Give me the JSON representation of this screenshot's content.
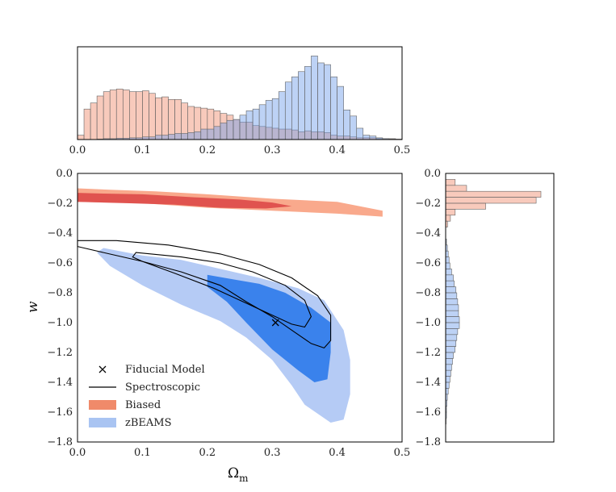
{
  "chart_data": {
    "type": "corner-plot",
    "colors": {
      "biased": "#f08a6a",
      "zbeams": "#6d9be8",
      "spectroscopic": "#000000"
    },
    "omega_hist": {
      "xlim": [
        0.0,
        0.5
      ],
      "xticks": [
        "0.0",
        "0.1",
        "0.2",
        "0.3",
        "0.4",
        "0.5"
      ],
      "bin_width": 0.01,
      "biased": [
        0.05,
        0.35,
        0.42,
        0.5,
        0.55,
        0.57,
        0.58,
        0.57,
        0.55,
        0.55,
        0.56,
        0.53,
        0.48,
        0.49,
        0.46,
        0.46,
        0.42,
        0.38,
        0.37,
        0.36,
        0.35,
        0.33,
        0.3,
        0.28,
        0.23,
        0.2,
        0.2,
        0.16,
        0.15,
        0.14,
        0.13,
        0.12,
        0.12,
        0.11,
        0.09,
        0.1,
        0.09,
        0.09,
        0.08,
        0.05,
        0.04,
        0.04,
        0.03,
        0.02,
        0.02,
        0.02,
        0.01,
        0.01,
        0.01,
        0.005
      ],
      "zbeams": [
        0.0,
        0.0,
        0.0,
        0.005,
        0.01,
        0.01,
        0.015,
        0.015,
        0.02,
        0.02,
        0.03,
        0.03,
        0.05,
        0.05,
        0.06,
        0.07,
        0.07,
        0.08,
        0.09,
        0.12,
        0.12,
        0.15,
        0.19,
        0.22,
        0.23,
        0.28,
        0.33,
        0.35,
        0.4,
        0.45,
        0.47,
        0.55,
        0.66,
        0.72,
        0.78,
        0.84,
        0.96,
        0.88,
        0.86,
        0.72,
        0.61,
        0.34,
        0.27,
        0.13,
        0.05,
        0.04,
        0.02,
        0.01,
        0.005,
        0.0
      ]
    },
    "w_hist": {
      "ylim": [
        -1.8,
        0.0
      ],
      "yticks": [
        "0.0",
        "−0.2",
        "−0.4",
        "−0.6",
        "−0.8",
        "−1.0",
        "−1.2",
        "−1.4",
        "−1.6",
        "−1.8"
      ],
      "bins": [
        {
          "lo": -0.08,
          "biased": 0.1,
          "zbeams": 0.0
        },
        {
          "lo": -0.12,
          "biased": 0.22,
          "zbeams": 0.0
        },
        {
          "lo": -0.16,
          "biased": 1.0,
          "zbeams": 0.0
        },
        {
          "lo": -0.2,
          "biased": 0.95,
          "zbeams": 0.0
        },
        {
          "lo": -0.24,
          "biased": 0.42,
          "zbeams": 0.0
        },
        {
          "lo": -0.28,
          "biased": 0.1,
          "zbeams": 0.0
        },
        {
          "lo": -0.32,
          "biased": 0.05,
          "zbeams": 0.0
        },
        {
          "lo": -0.36,
          "biased": 0.02,
          "zbeams": 0.0
        },
        {
          "lo": -0.48,
          "biased": 0.0,
          "zbeams": 0.01
        },
        {
          "lo": -0.52,
          "biased": 0.0,
          "zbeams": 0.02
        },
        {
          "lo": -0.56,
          "biased": 0.0,
          "zbeams": 0.03
        },
        {
          "lo": -0.6,
          "biased": 0.0,
          "zbeams": 0.04
        },
        {
          "lo": -0.64,
          "biased": 0.0,
          "zbeams": 0.05
        },
        {
          "lo": -0.68,
          "biased": 0.0,
          "zbeams": 0.07
        },
        {
          "lo": -0.72,
          "biased": 0.0,
          "zbeams": 0.09
        },
        {
          "lo": -0.76,
          "biased": 0.0,
          "zbeams": 0.1
        },
        {
          "lo": -0.8,
          "biased": 0.0,
          "zbeams": 0.12
        },
        {
          "lo": -0.84,
          "biased": 0.0,
          "zbeams": 0.13
        },
        {
          "lo": -0.88,
          "biased": 0.0,
          "zbeams": 0.14
        },
        {
          "lo": -0.92,
          "biased": 0.0,
          "zbeams": 0.15
        },
        {
          "lo": -0.96,
          "biased": 0.0,
          "zbeams": 0.15
        },
        {
          "lo": -1.0,
          "biased": 0.0,
          "zbeams": 0.16
        },
        {
          "lo": -1.04,
          "biased": 0.0,
          "zbeams": 0.16
        },
        {
          "lo": -1.08,
          "biased": 0.0,
          "zbeams": 0.14
        },
        {
          "lo": -1.12,
          "biased": 0.0,
          "zbeams": 0.13
        },
        {
          "lo": -1.16,
          "biased": 0.0,
          "zbeams": 0.12
        },
        {
          "lo": -1.2,
          "biased": 0.0,
          "zbeams": 0.11
        },
        {
          "lo": -1.24,
          "biased": 0.0,
          "zbeams": 0.09
        },
        {
          "lo": -1.28,
          "biased": 0.0,
          "zbeams": 0.08
        },
        {
          "lo": -1.32,
          "biased": 0.0,
          "zbeams": 0.07
        },
        {
          "lo": -1.36,
          "biased": 0.0,
          "zbeams": 0.06
        },
        {
          "lo": -1.4,
          "biased": 0.0,
          "zbeams": 0.05
        },
        {
          "lo": -1.44,
          "biased": 0.0,
          "zbeams": 0.04
        },
        {
          "lo": -1.48,
          "biased": 0.0,
          "zbeams": 0.03
        },
        {
          "lo": -1.52,
          "biased": 0.0,
          "zbeams": 0.02
        },
        {
          "lo": -1.56,
          "biased": 0.0,
          "zbeams": 0.015
        },
        {
          "lo": -1.6,
          "biased": 0.0,
          "zbeams": 0.01
        },
        {
          "lo": -1.64,
          "biased": 0.0,
          "zbeams": 0.01
        },
        {
          "lo": -1.68,
          "biased": 0.0,
          "zbeams": 0.005
        }
      ]
    },
    "contour_plot": {
      "xlim": [
        0.0,
        0.5
      ],
      "ylim": [
        -1.8,
        0.0
      ],
      "xticks": [
        "0.0",
        "0.1",
        "0.2",
        "0.3",
        "0.4",
        "0.5"
      ],
      "yticks": [
        "0.0",
        "−0.2",
        "−0.4",
        "−0.6",
        "−0.8",
        "−1.0",
        "−1.2",
        "−1.4",
        "−1.6",
        "−1.8"
      ],
      "xlabel": "Ω",
      "xlabel_sub": "m",
      "ylabel": "w",
      "fiducial": [
        0.305,
        -1.0
      ],
      "regions": {
        "biased_outer": [
          [
            0.0,
            -0.1
          ],
          [
            0.05,
            -0.11
          ],
          [
            0.12,
            -0.12
          ],
          [
            0.2,
            -0.14
          ],
          [
            0.3,
            -0.17
          ],
          [
            0.4,
            -0.19
          ],
          [
            0.47,
            -0.25
          ],
          [
            0.47,
            -0.29
          ],
          [
            0.4,
            -0.27
          ],
          [
            0.3,
            -0.25
          ],
          [
            0.2,
            -0.23
          ],
          [
            0.1,
            -0.2
          ],
          [
            0.0,
            -0.19
          ]
        ],
        "biased_inner": [
          [
            0.0,
            -0.13
          ],
          [
            0.04,
            -0.135
          ],
          [
            0.1,
            -0.14
          ],
          [
            0.18,
            -0.16
          ],
          [
            0.25,
            -0.175
          ],
          [
            0.3,
            -0.195
          ],
          [
            0.33,
            -0.22
          ],
          [
            0.29,
            -0.235
          ],
          [
            0.22,
            -0.23
          ],
          [
            0.15,
            -0.21
          ],
          [
            0.08,
            -0.2
          ],
          [
            0.0,
            -0.19
          ]
        ],
        "zbeams_outer": [
          [
            0.04,
            -0.5
          ],
          [
            0.1,
            -0.55
          ],
          [
            0.16,
            -0.58
          ],
          [
            0.22,
            -0.64
          ],
          [
            0.28,
            -0.7
          ],
          [
            0.34,
            -0.77
          ],
          [
            0.38,
            -0.85
          ],
          [
            0.41,
            -1.05
          ],
          [
            0.42,
            -1.25
          ],
          [
            0.42,
            -1.48
          ],
          [
            0.41,
            -1.65
          ],
          [
            0.39,
            -1.67
          ],
          [
            0.35,
            -1.55
          ],
          [
            0.33,
            -1.42
          ],
          [
            0.3,
            -1.25
          ],
          [
            0.26,
            -1.1
          ],
          [
            0.22,
            -0.99
          ],
          [
            0.16,
            -0.88
          ],
          [
            0.1,
            -0.75
          ],
          [
            0.05,
            -0.62
          ],
          [
            0.03,
            -0.53
          ]
        ],
        "zbeams_inner": [
          [
            0.2,
            -0.68
          ],
          [
            0.24,
            -0.71
          ],
          [
            0.28,
            -0.74
          ],
          [
            0.32,
            -0.8
          ],
          [
            0.36,
            -0.9
          ],
          [
            0.39,
            -1.0
          ],
          [
            0.39,
            -1.2
          ],
          [
            0.385,
            -1.38
          ],
          [
            0.365,
            -1.4
          ],
          [
            0.34,
            -1.32
          ],
          [
            0.3,
            -1.18
          ],
          [
            0.26,
            -1.0
          ],
          [
            0.23,
            -0.86
          ],
          [
            0.2,
            -0.76
          ]
        ],
        "spec_outer": [
          [
            0.0,
            -0.45
          ],
          [
            0.06,
            -0.45
          ],
          [
            0.14,
            -0.48
          ],
          [
            0.22,
            -0.54
          ],
          [
            0.28,
            -0.61
          ],
          [
            0.33,
            -0.7
          ],
          [
            0.37,
            -0.82
          ],
          [
            0.39,
            -0.95
          ],
          [
            0.39,
            -1.12
          ],
          [
            0.38,
            -1.17
          ],
          [
            0.36,
            -1.14
          ],
          [
            0.33,
            -1.05
          ],
          [
            0.3,
            -0.96
          ],
          [
            0.26,
            -0.86
          ],
          [
            0.22,
            -0.75
          ],
          [
            0.16,
            -0.66
          ],
          [
            0.1,
            -0.59
          ],
          [
            0.04,
            -0.53
          ],
          [
            0.0,
            -0.49
          ]
        ],
        "spec_inner": [
          [
            0.09,
            -0.53
          ],
          [
            0.16,
            -0.56
          ],
          [
            0.22,
            -0.6
          ],
          [
            0.27,
            -0.66
          ],
          [
            0.32,
            -0.75
          ],
          [
            0.35,
            -0.85
          ],
          [
            0.36,
            -0.96
          ],
          [
            0.35,
            -1.03
          ],
          [
            0.33,
            -1.01
          ],
          [
            0.3,
            -0.95
          ],
          [
            0.26,
            -0.87
          ],
          [
            0.21,
            -0.77
          ],
          [
            0.15,
            -0.67
          ],
          [
            0.1,
            -0.59
          ],
          [
            0.085,
            -0.56
          ]
        ]
      }
    },
    "legend": [
      {
        "label": "Fiducial Model",
        "kind": "marker"
      },
      {
        "label": "Spectroscopic",
        "kind": "line"
      },
      {
        "label": "Biased",
        "kind": "patch"
      },
      {
        "label": "zBEAMS",
        "kind": "patch"
      }
    ]
  }
}
